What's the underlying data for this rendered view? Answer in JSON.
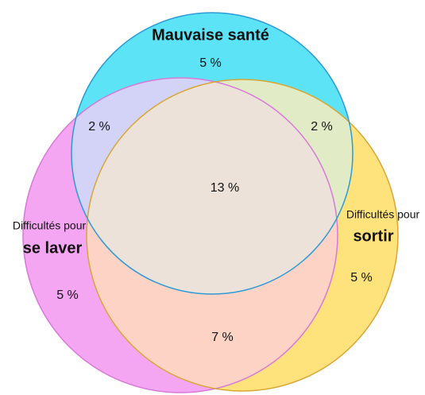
{
  "sets": [
    {
      "name": "Mauvaise santé"
    },
    {
      "prefix": "Difficultés pour",
      "name": "se laver"
    },
    {
      "prefix": "Difficultés pour",
      "name": "sortir"
    }
  ],
  "regions": [
    {
      "label": "5 %"
    },
    {
      "label": "2 %"
    },
    {
      "label": "2 %"
    },
    {
      "label": "13 %"
    },
    {
      "label": "5 %"
    },
    {
      "label": "5 %"
    },
    {
      "label": "7 %"
    }
  ]
}
